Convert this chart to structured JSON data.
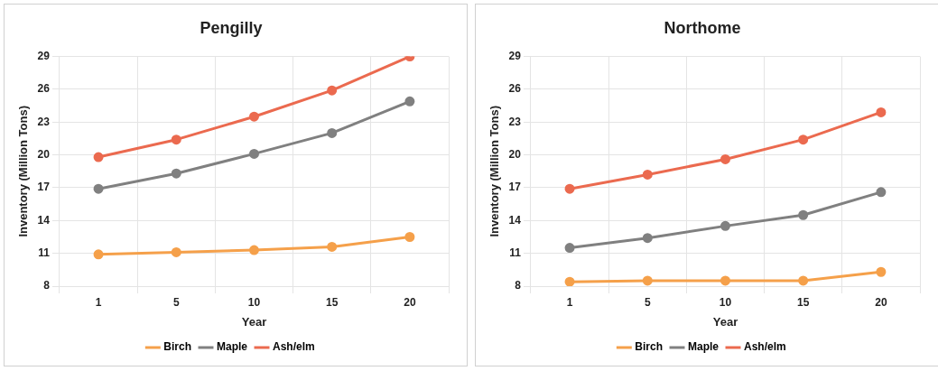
{
  "chart_data": [
    {
      "type": "line",
      "title": "Pengilly",
      "xlabel": "Year",
      "ylabel": "Inventory (Million Tons)",
      "categories": [
        "1",
        "5",
        "10",
        "15",
        "20"
      ],
      "ylim": [
        8,
        29
      ],
      "yticks": [
        8,
        11,
        14,
        17,
        20,
        23,
        26,
        29
      ],
      "grid": true,
      "legend": "bottom",
      "marker": "circle",
      "series": [
        {
          "name": "Birch",
          "color": "#f5a04a",
          "values": [
            10.9,
            11.1,
            11.3,
            11.6,
            12.5
          ]
        },
        {
          "name": "Maple",
          "color": "#808080",
          "values": [
            16.9,
            18.3,
            20.1,
            22.0,
            24.9
          ]
        },
        {
          "name": "Ash/elm",
          "color": "#eb6a4f",
          "values": [
            19.8,
            21.4,
            23.5,
            25.9,
            29.0
          ]
        }
      ]
    },
    {
      "type": "line",
      "title": "Northome",
      "xlabel": "Year",
      "ylabel": "Inventory (Million Tons)",
      "categories": [
        "1",
        "5",
        "10",
        "15",
        "20"
      ],
      "ylim": [
        8,
        29
      ],
      "yticks": [
        8,
        11,
        14,
        17,
        20,
        23,
        26,
        29
      ],
      "grid": true,
      "legend": "bottom",
      "marker": "circle",
      "series": [
        {
          "name": "Birch",
          "color": "#f5a04a",
          "values": [
            8.4,
            8.5,
            8.5,
            8.5,
            9.3
          ]
        },
        {
          "name": "Maple",
          "color": "#808080",
          "values": [
            11.5,
            12.4,
            13.5,
            14.5,
            16.6
          ]
        },
        {
          "name": "Ash/elm",
          "color": "#eb6a4f",
          "values": [
            16.9,
            18.2,
            19.6,
            21.4,
            23.9
          ]
        }
      ]
    }
  ]
}
